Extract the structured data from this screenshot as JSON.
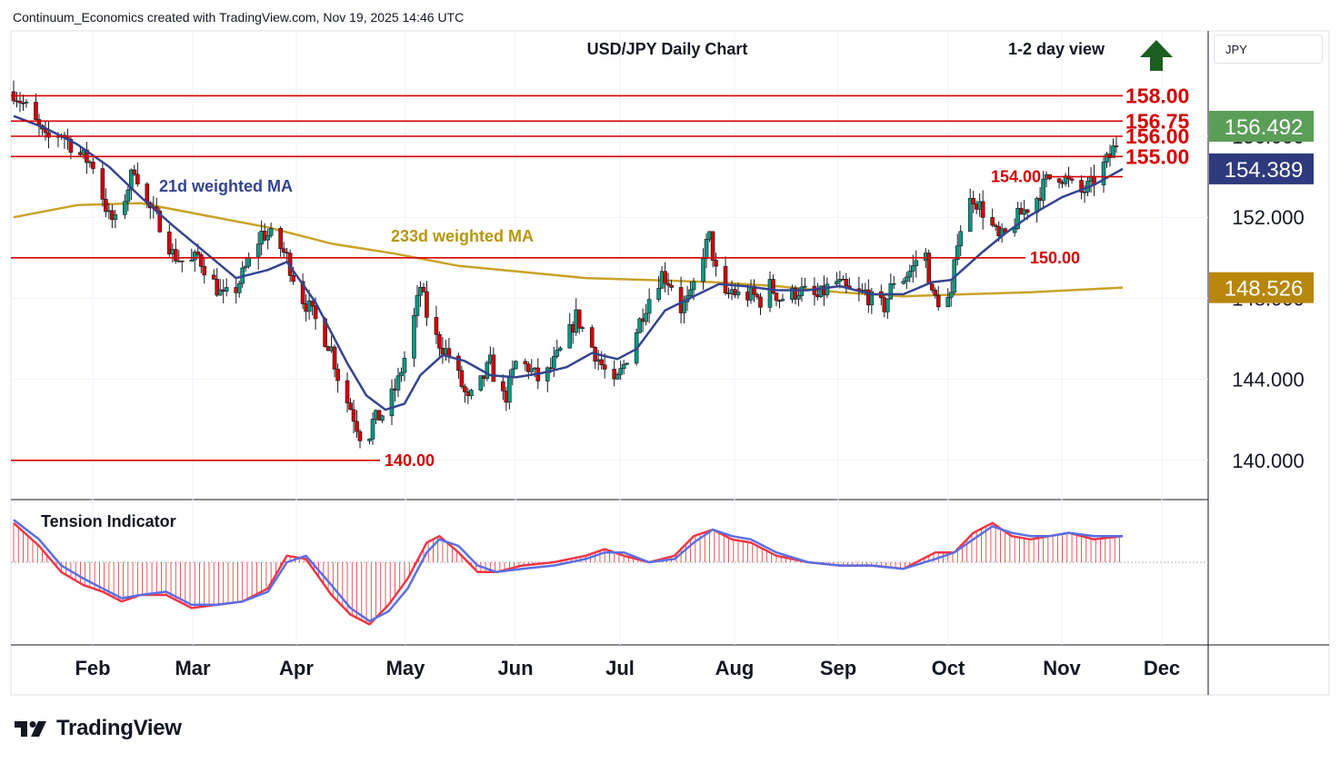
{
  "header": {
    "credit": "Continuum_Economics created with TradingView.com, Nov 19, 2025 14:46 UTC"
  },
  "currency_label": "JPY",
  "brand": "TradingView",
  "colors": {
    "up": "#089981",
    "down": "#d50000",
    "level_line": "#d50000",
    "ma21": "#34448f",
    "ma233": "#c9a227",
    "arrow": "#1b5e20",
    "price_box_green": "#5b9e58",
    "price_box_navy": "#2e3a7d",
    "price_box_gold": "#b8860b"
  },
  "chart_data": [
    {
      "type": "candlestick",
      "title": "USD/JPY Daily Chart",
      "subtitle": "1-2 day view",
      "view_direction_icon": "up-arrow-icon",
      "x_tick_labels": [
        "Feb",
        "Mar",
        "Apr",
        "May",
        "Jun",
        "Jul",
        "Aug",
        "Sep",
        "Oct",
        "Nov",
        "Dec"
      ],
      "y_tick_labels": [
        "140.000",
        "144.000",
        "148.000",
        "152.000",
        "156.000"
      ],
      "ylim": [
        138,
        161
      ],
      "levels": [
        {
          "label": "158.00",
          "value": 158.0
        },
        {
          "label": "156.75",
          "value": 156.75
        },
        {
          "label": "156.00",
          "value": 156.0
        },
        {
          "label": "155.00",
          "value": 155.0
        },
        {
          "label": "154.00",
          "value": 154.0
        },
        {
          "label": "150.00",
          "value": 150.0
        },
        {
          "label": "140.00",
          "value": 140.0
        }
      ],
      "price_boxes": [
        {
          "label": "156.492",
          "value": 156.492
        },
        {
          "label": "154.389",
          "value": 154.389
        },
        {
          "label": "148.526",
          "value": 148.526
        }
      ],
      "annotations": [
        "21d weighted MA",
        "233d weighted MA"
      ],
      "close_path": [
        [
          0,
          158.2
        ],
        [
          5,
          157.2
        ],
        [
          10,
          155.8
        ],
        [
          15,
          156.2
        ],
        [
          20,
          155.2
        ],
        [
          25,
          154.6
        ],
        [
          30,
          152.0
        ],
        [
          33,
          151.6
        ],
        [
          35,
          153.0
        ],
        [
          38,
          154.5
        ],
        [
          42,
          152.6
        ],
        [
          47,
          151.5
        ],
        [
          50,
          150.2
        ],
        [
          55,
          149.6
        ],
        [
          58,
          150.1
        ],
        [
          62,
          149.0
        ],
        [
          66,
          148.0
        ],
        [
          70,
          148.5
        ],
        [
          74,
          149.8
        ],
        [
          78,
          151.2
        ],
        [
          82,
          151.0
        ],
        [
          86,
          150.0
        ],
        [
          90,
          148.2
        ],
        [
          93,
          147.5
        ],
        [
          97,
          146.3
        ],
        [
          100,
          145.5
        ],
        [
          103,
          143.5
        ],
        [
          106,
          142.6
        ],
        [
          109,
          141.3
        ],
        [
          111,
          140.8
        ],
        [
          113,
          141.9
        ],
        [
          117,
          142.4
        ],
        [
          121,
          143.9
        ],
        [
          125,
          146.2
        ],
        [
          128,
          148.6
        ],
        [
          130,
          147.2
        ],
        [
          133,
          146.0
        ],
        [
          137,
          145.2
        ],
        [
          140,
          144.1
        ],
        [
          143,
          142.9
        ],
        [
          147,
          143.8
        ],
        [
          150,
          144.8
        ],
        [
          153,
          143.1
        ],
        [
          155,
          143.2
        ],
        [
          158,
          144.8
        ],
        [
          162,
          144.6
        ],
        [
          166,
          143.8
        ],
        [
          170,
          144.8
        ],
        [
          174,
          145.9
        ],
        [
          177,
          147.1
        ],
        [
          180,
          146.2
        ],
        [
          183,
          145.3
        ],
        [
          186,
          144.4
        ],
        [
          189,
          143.6
        ],
        [
          192,
          144.7
        ],
        [
          195,
          146.0
        ],
        [
          198,
          147.3
        ],
        [
          201,
          148.4
        ],
        [
          204,
          149.2
        ],
        [
          207,
          148.7
        ],
        [
          210,
          147.5
        ],
        [
          213,
          148.0
        ],
        [
          216,
          149.9
        ],
        [
          219,
          151.0
        ],
        [
          221,
          149.3
        ],
        [
          223,
          147.7
        ],
        [
          226,
          148.4
        ],
        [
          229,
          148.0
        ],
        [
          232,
          148.2
        ],
        [
          235,
          147.9
        ],
        [
          238,
          148.6
        ],
        [
          241,
          148.0
        ],
        [
          244,
          148.1
        ],
        [
          247,
          148.4
        ],
        [
          250,
          148.2
        ],
        [
          253,
          148.0
        ],
        [
          256,
          148.5
        ],
        [
          259,
          148.8
        ],
        [
          262,
          148.4
        ],
        [
          265,
          148.1
        ],
        [
          268,
          148.3
        ],
        [
          271,
          147.7
        ],
        [
          274,
          147.6
        ],
        [
          277,
          148.9
        ],
        [
          280,
          149.0
        ],
        [
          283,
          149.5
        ],
        [
          285,
          150.3
        ],
        [
          287,
          150.1
        ],
        [
          289,
          148.1
        ],
        [
          292,
          147.8
        ],
        [
          295,
          148.0
        ],
        [
          297,
          151.0
        ],
        [
          300,
          152.5
        ],
        [
          302,
          153.0
        ],
        [
          305,
          152.3
        ],
        [
          308,
          151.5
        ],
        [
          310,
          150.9
        ],
        [
          313,
          151.2
        ],
        [
          316,
          152.0
        ],
        [
          319,
          152.5
        ],
        [
          322,
          153.0
        ],
        [
          325,
          153.8
        ],
        [
          328,
          154.2
        ],
        [
          331,
          153.9
        ],
        [
          333,
          153.5
        ],
        [
          336,
          153.2
        ],
        [
          339,
          153.6
        ],
        [
          342,
          154.3
        ],
        [
          345,
          155.0
        ],
        [
          347,
          155.7
        ],
        [
          349,
          156.49
        ]
      ],
      "ma21_path": [
        [
          0,
          157.0
        ],
        [
          10,
          156.4
        ],
        [
          20,
          155.6
        ],
        [
          30,
          154.5
        ],
        [
          40,
          153.0
        ],
        [
          50,
          151.6
        ],
        [
          60,
          150.3
        ],
        [
          70,
          149.0
        ],
        [
          80,
          149.4
        ],
        [
          86,
          149.8
        ],
        [
          95,
          147.8
        ],
        [
          105,
          144.8
        ],
        [
          111,
          143.2
        ],
        [
          117,
          142.5
        ],
        [
          123,
          142.8
        ],
        [
          128,
          144.2
        ],
        [
          135,
          145.2
        ],
        [
          142,
          144.9
        ],
        [
          150,
          144.2
        ],
        [
          158,
          144.1
        ],
        [
          166,
          144.3
        ],
        [
          174,
          144.6
        ],
        [
          182,
          145.3
        ],
        [
          190,
          145.0
        ],
        [
          196,
          145.5
        ],
        [
          205,
          147.4
        ],
        [
          214,
          148.1
        ],
        [
          222,
          148.7
        ],
        [
          230,
          148.6
        ],
        [
          240,
          148.4
        ],
        [
          250,
          148.4
        ],
        [
          260,
          148.6
        ],
        [
          270,
          148.2
        ],
        [
          280,
          148.2
        ],
        [
          289,
          148.8
        ],
        [
          295,
          148.9
        ],
        [
          300,
          149.6
        ],
        [
          305,
          150.3
        ],
        [
          312,
          151.2
        ],
        [
          320,
          152.1
        ],
        [
          330,
          153.0
        ],
        [
          340,
          153.6
        ],
        [
          349,
          154.39
        ]
      ],
      "ma233_path": [
        [
          0,
          152.0
        ],
        [
          20,
          152.6
        ],
        [
          40,
          152.7
        ],
        [
          60,
          152.1
        ],
        [
          80,
          151.5
        ],
        [
          100,
          150.7
        ],
        [
          120,
          150.2
        ],
        [
          140,
          149.6
        ],
        [
          160,
          149.3
        ],
        [
          180,
          149.0
        ],
        [
          200,
          148.9
        ],
        [
          220,
          148.8
        ],
        [
          240,
          148.6
        ],
        [
          260,
          148.3
        ],
        [
          280,
          148.1
        ],
        [
          300,
          148.2
        ],
        [
          320,
          148.3
        ],
        [
          349,
          148.53
        ]
      ],
      "tension_indicator": {
        "label": "Tension Indicator",
        "fast_path": [
          [
            0,
            1.2
          ],
          [
            8,
            0.5
          ],
          [
            15,
            -0.3
          ],
          [
            22,
            -0.7
          ],
          [
            28,
            -0.9
          ],
          [
            34,
            -1.2
          ],
          [
            40,
            -1.0
          ],
          [
            48,
            -1.0
          ],
          [
            56,
            -1.4
          ],
          [
            64,
            -1.3
          ],
          [
            72,
            -1.2
          ],
          [
            80,
            -0.8
          ],
          [
            86,
            0.2
          ],
          [
            92,
            0.1
          ],
          [
            100,
            -1.0
          ],
          [
            106,
            -1.6
          ],
          [
            112,
            -1.9
          ],
          [
            118,
            -1.3
          ],
          [
            124,
            -0.5
          ],
          [
            130,
            0.6
          ],
          [
            134,
            0.8
          ],
          [
            140,
            0.3
          ],
          [
            146,
            -0.3
          ],
          [
            152,
            -0.3
          ],
          [
            160,
            -0.1
          ],
          [
            170,
            0.0
          ],
          [
            180,
            0.2
          ],
          [
            186,
            0.4
          ],
          [
            192,
            0.2
          ],
          [
            200,
            0.0
          ],
          [
            208,
            0.2
          ],
          [
            214,
            0.8
          ],
          [
            220,
            1.0
          ],
          [
            226,
            0.7
          ],
          [
            232,
            0.6
          ],
          [
            240,
            0.2
          ],
          [
            250,
            0.0
          ],
          [
            260,
            -0.1
          ],
          [
            270,
            -0.1
          ],
          [
            280,
            -0.2
          ],
          [
            290,
            0.3
          ],
          [
            296,
            0.3
          ],
          [
            302,
            0.9
          ],
          [
            308,
            1.2
          ],
          [
            314,
            0.8
          ],
          [
            320,
            0.7
          ],
          [
            326,
            0.8
          ],
          [
            332,
            0.9
          ],
          [
            340,
            0.7
          ],
          [
            349,
            0.8
          ]
        ],
        "slow_path": [
          [
            0,
            1.3
          ],
          [
            8,
            0.7
          ],
          [
            15,
            -0.1
          ],
          [
            22,
            -0.5
          ],
          [
            28,
            -0.8
          ],
          [
            34,
            -1.1
          ],
          [
            40,
            -1.0
          ],
          [
            48,
            -0.9
          ],
          [
            56,
            -1.3
          ],
          [
            64,
            -1.3
          ],
          [
            72,
            -1.2
          ],
          [
            80,
            -0.9
          ],
          [
            86,
            0.0
          ],
          [
            92,
            0.2
          ],
          [
            100,
            -0.7
          ],
          [
            106,
            -1.4
          ],
          [
            112,
            -1.8
          ],
          [
            118,
            -1.5
          ],
          [
            124,
            -0.8
          ],
          [
            130,
            0.3
          ],
          [
            134,
            0.7
          ],
          [
            140,
            0.5
          ],
          [
            146,
            -0.1
          ],
          [
            152,
            -0.3
          ],
          [
            160,
            -0.2
          ],
          [
            170,
            -0.1
          ],
          [
            180,
            0.1
          ],
          [
            186,
            0.3
          ],
          [
            192,
            0.3
          ],
          [
            200,
            0.0
          ],
          [
            208,
            0.1
          ],
          [
            214,
            0.6
          ],
          [
            220,
            1.0
          ],
          [
            226,
            0.8
          ],
          [
            232,
            0.7
          ],
          [
            240,
            0.3
          ],
          [
            250,
            0.0
          ],
          [
            260,
            -0.1
          ],
          [
            270,
            -0.1
          ],
          [
            280,
            -0.2
          ],
          [
            290,
            0.1
          ],
          [
            296,
            0.3
          ],
          [
            302,
            0.7
          ],
          [
            308,
            1.1
          ],
          [
            314,
            0.9
          ],
          [
            320,
            0.8
          ],
          [
            326,
            0.8
          ],
          [
            332,
            0.9
          ],
          [
            340,
            0.8
          ],
          [
            349,
            0.8
          ]
        ],
        "ylim": [
          -2.2,
          1.8
        ]
      }
    }
  ]
}
